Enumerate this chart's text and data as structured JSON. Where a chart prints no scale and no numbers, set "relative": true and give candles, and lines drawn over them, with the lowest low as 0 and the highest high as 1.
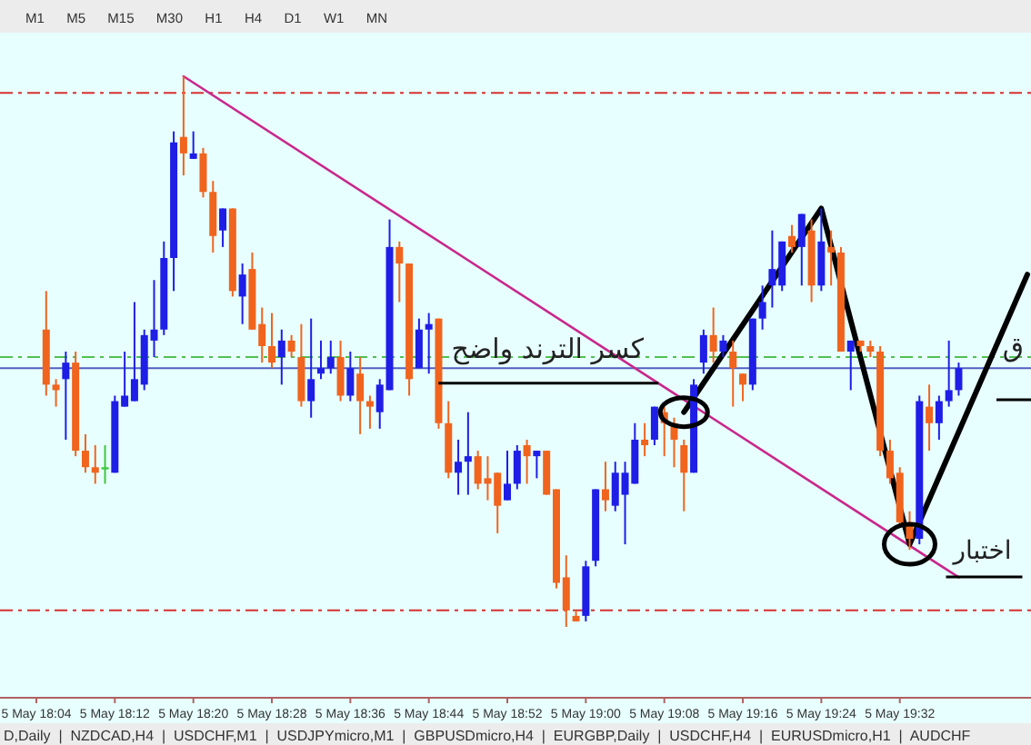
{
  "chart_data": {
    "type": "candlestick",
    "relative": true,
    "categories": [
      "5 May 18:04",
      null,
      null,
      null,
      null,
      null,
      null,
      null,
      "5 May 18:12",
      null,
      null,
      null,
      null,
      null,
      null,
      null,
      "5 May 18:20",
      null,
      null,
      null,
      null,
      null,
      null,
      null,
      "5 May 18:28",
      null,
      null,
      null,
      null,
      null,
      null,
      null,
      "5 May 18:36",
      null,
      null,
      null,
      null,
      null,
      null,
      null,
      "5 May 18:44",
      null,
      null,
      null,
      null,
      null,
      null,
      null,
      "5 May 18:52",
      null,
      null,
      null,
      null,
      null,
      null,
      null,
      "5 May 19:00",
      null,
      null,
      null,
      null,
      null,
      null,
      null,
      "5 May 19:08",
      null,
      null,
      null,
      null,
      null,
      null,
      null,
      "5 May 19:16",
      null,
      null,
      null,
      null,
      null,
      null,
      null,
      "5 May 19:24",
      null,
      null,
      null,
      null,
      null,
      null,
      null,
      "5 May 19:32",
      null,
      null,
      null,
      null,
      null,
      null,
      null,
      null,
      null,
      null,
      null,
      null,
      null
    ],
    "ohlc": [
      null,
      [
        0.54,
        0.61,
        0.42,
        0.44
      ],
      [
        0.44,
        0.45,
        0.4,
        0.43
      ],
      [
        0.45,
        0.5,
        0.34,
        0.48
      ],
      [
        0.48,
        0.5,
        0.31,
        0.32
      ],
      [
        0.32,
        0.35,
        0.28,
        0.29
      ],
      [
        0.29,
        0.33,
        0.26,
        0.28
      ],
      [
        0.29,
        0.33,
        0.26,
        0.29
      ],
      [
        0.28,
        0.42,
        0.28,
        0.41
      ],
      [
        0.4,
        0.5,
        0.4,
        0.42
      ],
      [
        0.41,
        0.59,
        0.41,
        0.45
      ],
      [
        0.44,
        0.54,
        0.43,
        0.53
      ],
      [
        0.52,
        0.63,
        0.49,
        0.54
      ],
      [
        0.54,
        0.7,
        0.53,
        0.67
      ],
      [
        0.67,
        0.9,
        0.61,
        0.88
      ],
      [
        0.89,
        1.0,
        0.82,
        0.86
      ],
      [
        0.85,
        0.9,
        0.85,
        0.86
      ],
      [
        0.86,
        0.87,
        0.78,
        0.79
      ],
      [
        0.79,
        0.81,
        0.68,
        0.71
      ],
      [
        0.72,
        0.76,
        0.69,
        0.76
      ],
      [
        0.76,
        0.76,
        0.6,
        0.61
      ],
      [
        0.6,
        0.66,
        0.55,
        0.64
      ],
      [
        0.65,
        0.68,
        0.54,
        0.54
      ],
      [
        0.55,
        0.58,
        0.48,
        0.51
      ],
      [
        0.51,
        0.57,
        0.47,
        0.48
      ],
      [
        0.49,
        0.54,
        0.44,
        0.52
      ],
      [
        0.52,
        0.53,
        0.49,
        0.5
      ],
      [
        0.49,
        0.55,
        0.4,
        0.41
      ],
      [
        0.41,
        0.56,
        0.38,
        0.45
      ],
      [
        0.46,
        0.52,
        0.45,
        0.47
      ],
      [
        0.47,
        0.52,
        0.46,
        0.49
      ],
      [
        0.49,
        0.52,
        0.41,
        0.42
      ],
      [
        0.42,
        0.5,
        0.41,
        0.47
      ],
      [
        0.46,
        0.49,
        0.35,
        0.41
      ],
      [
        0.41,
        0.42,
        0.36,
        0.4
      ],
      [
        0.39,
        0.45,
        0.36,
        0.44
      ],
      [
        0.43,
        0.74,
        0.43,
        0.69
      ],
      [
        0.69,
        0.7,
        0.59,
        0.66
      ],
      [
        0.66,
        0.66,
        0.42,
        0.45
      ],
      [
        0.47,
        0.56,
        0.47,
        0.54
      ],
      [
        0.54,
        0.57,
        0.46,
        0.55
      ],
      [
        0.56,
        0.56,
        0.36,
        0.37
      ],
      [
        0.37,
        0.41,
        0.27,
        0.28
      ],
      [
        0.28,
        0.34,
        0.24,
        0.3
      ],
      [
        0.3,
        0.39,
        0.24,
        0.31
      ],
      [
        0.31,
        0.32,
        0.25,
        0.26
      ],
      [
        0.27,
        0.31,
        0.23,
        0.26
      ],
      [
        0.28,
        0.28,
        0.17,
        0.22
      ],
      [
        0.23,
        0.32,
        0.23,
        0.26
      ],
      [
        0.26,
        0.33,
        0.25,
        0.32
      ],
      [
        0.33,
        0.34,
        0.26,
        0.31
      ],
      [
        0.31,
        0.32,
        0.27,
        0.32
      ],
      [
        0.32,
        0.32,
        0.24,
        0.24
      ],
      [
        0.25,
        0.25,
        0.07,
        0.08
      ],
      [
        0.09,
        0.13,
        0.0,
        0.03
      ],
      [
        0.02,
        0.03,
        0.01,
        0.01
      ],
      [
        0.02,
        0.12,
        0.01,
        0.11
      ],
      [
        0.12,
        0.25,
        0.11,
        0.25
      ],
      [
        0.25,
        0.3,
        0.21,
        0.23
      ],
      [
        0.22,
        0.3,
        0.21,
        0.28
      ],
      [
        0.24,
        0.3,
        0.15,
        0.28
      ],
      [
        0.26,
        0.37,
        0.26,
        0.34
      ],
      [
        0.34,
        0.37,
        0.31,
        0.33
      ],
      [
        0.34,
        0.4,
        0.33,
        0.4
      ],
      [
        0.39,
        0.4,
        0.31,
        0.37
      ],
      [
        0.37,
        0.38,
        0.29,
        0.34
      ],
      [
        0.33,
        0.34,
        0.21,
        0.28
      ],
      [
        0.28,
        0.45,
        0.28,
        0.44
      ],
      [
        0.48,
        0.54,
        0.46,
        0.53
      ],
      [
        0.53,
        0.58,
        0.48,
        0.5
      ],
      [
        0.5,
        0.53,
        0.49,
        0.52
      ],
      [
        0.5,
        0.52,
        0.4,
        0.47
      ],
      [
        0.46,
        0.46,
        0.41,
        0.44
      ],
      [
        0.44,
        0.56,
        0.43,
        0.56
      ],
      [
        0.56,
        0.62,
        0.54,
        0.59
      ],
      [
        0.62,
        0.72,
        0.58,
        0.65
      ],
      [
        0.62,
        0.7,
        0.61,
        0.7
      ],
      [
        0.71,
        0.73,
        0.68,
        0.69
      ],
      [
        0.69,
        0.75,
        0.62,
        0.75
      ],
      [
        0.72,
        0.74,
        0.59,
        0.62
      ],
      [
        0.62,
        0.76,
        0.61,
        0.7
      ],
      [
        0.69,
        0.72,
        0.62,
        0.68
      ],
      [
        0.68,
        0.69,
        0.5,
        0.5
      ],
      [
        0.5,
        0.52,
        0.43,
        0.52
      ],
      [
        0.52,
        0.52,
        0.5,
        0.51
      ],
      [
        0.51,
        0.52,
        0.49,
        0.5
      ],
      [
        0.5,
        0.51,
        0.31,
        0.32
      ],
      [
        0.32,
        0.34,
        0.26,
        0.27
      ],
      [
        0.28,
        0.29,
        0.18,
        0.19
      ],
      [
        0.19,
        0.21,
        0.14,
        0.16
      ],
      [
        0.16,
        0.42,
        0.15,
        0.41
      ],
      [
        0.4,
        0.44,
        0.32,
        0.37
      ],
      [
        0.37,
        0.42,
        0.34,
        0.41
      ],
      [
        0.41,
        0.52,
        0.4,
        0.43
      ],
      [
        0.43,
        0.48,
        0.42,
        0.47
      ],
      null,
      null,
      null,
      null,
      null,
      null,
      null
    ],
    "colors": [
      null,
      "#f0641e",
      "#f0641e",
      "#1e1ee6",
      "#f0641e",
      "#f0641e",
      "#f0641e",
      "#3cc83c",
      "#1e1ee6",
      "#1e1ee6",
      "#1e1ee6",
      "#1e1ee6",
      "#1e1ee6",
      "#1e1ee6",
      "#1e1ee6",
      "#f0641e",
      "#1e1ee6",
      "#f0641e",
      "#f0641e",
      "#1e1ee6",
      "#f0641e",
      "#1e1ee6",
      "#f0641e",
      "#f0641e",
      "#f0641e",
      "#1e1ee6",
      "#f0641e",
      "#f0641e",
      "#1e1ee6",
      "#1e1ee6",
      "#1e1ee6",
      "#f0641e",
      "#1e1ee6",
      "#f0641e",
      "#f0641e",
      "#1e1ee6",
      "#1e1ee6",
      "#f0641e",
      "#f0641e",
      "#1e1ee6",
      "#1e1ee6",
      "#f0641e",
      "#f0641e",
      "#1e1ee6",
      "#1e1ee6",
      "#f0641e",
      "#f0641e",
      "#f0641e",
      "#1e1ee6",
      "#1e1ee6",
      "#f0641e",
      "#1e1ee6",
      "#f0641e",
      "#f0641e",
      "#f0641e",
      "#f0641e",
      "#1e1ee6",
      "#1e1ee6",
      "#f0641e",
      "#1e1ee6",
      "#1e1ee6",
      "#1e1ee6",
      "#f0641e",
      "#1e1ee6",
      "#f0641e",
      "#f0641e",
      "#f0641e",
      "#1e1ee6",
      "#1e1ee6",
      "#f0641e",
      "#1e1ee6",
      "#f0641e",
      "#f0641e",
      "#1e1ee6",
      "#1e1ee6",
      "#1e1ee6",
      "#1e1ee6",
      "#f0641e",
      "#1e1ee6",
      "#f0641e",
      "#1e1ee6",
      "#f0641e",
      "#f0641e",
      "#1e1ee6",
      "#f0641e",
      "#f0641e",
      "#f0641e",
      "#f0641e",
      "#f0641e",
      "#f0641e",
      "#1e1ee6",
      "#f0641e",
      "#1e1ee6",
      "#1e1ee6",
      "#1e1ee6",
      null,
      null,
      null,
      null,
      null,
      null,
      null
    ],
    "series": [
      {
        "type": "line",
        "color": "#c8288c",
        "values": [
          null,
          null,
          null,
          null,
          null,
          null,
          null,
          null,
          null,
          null,
          null,
          null,
          null,
          null,
          null,
          1.0,
          null,
          null,
          null,
          null,
          null,
          null,
          null,
          null,
          null,
          null,
          null,
          null,
          null,
          null,
          null,
          null,
          null,
          null,
          null,
          null,
          null,
          null,
          null,
          null,
          null,
          null,
          null,
          null,
          null,
          null,
          null,
          null,
          null,
          null,
          null,
          null,
          null,
          null,
          null,
          null,
          null,
          null,
          null,
          null,
          null,
          null,
          null,
          null,
          null,
          null,
          null,
          null,
          null,
          null,
          null,
          null,
          null,
          null,
          null,
          null,
          null,
          null,
          null,
          null,
          null,
          null,
          null,
          null,
          null,
          null,
          null,
          null,
          null,
          null,
          null,
          null,
          null,
          null,
          0.09,
          null,
          null,
          null,
          null,
          null,
          null,
          null
        ]
      },
      {
        "type": "line",
        "color": "#000000",
        "values": [
          null,
          null,
          null,
          null,
          null,
          null,
          null,
          null,
          null,
          null,
          null,
          null,
          null,
          null,
          null,
          null,
          null,
          null,
          null,
          null,
          null,
          null,
          null,
          null,
          null,
          null,
          null,
          null,
          null,
          null,
          null,
          null,
          null,
          null,
          null,
          null,
          null,
          null,
          null,
          null,
          null,
          null,
          null,
          null,
          null,
          null,
          null,
          null,
          null,
          null,
          null,
          null,
          null,
          null,
          null,
          null,
          null,
          null,
          null,
          null,
          null,
          null,
          null,
          null,
          null,
          null,
          0.39,
          null,
          null,
          null,
          null,
          null,
          null,
          null,
          null,
          null,
          null,
          null,
          null,
          null,
          0.76,
          null,
          null,
          null,
          null,
          null,
          null,
          null,
          null,
          0.15,
          null,
          null,
          null,
          null,
          null,
          null,
          null,
          null,
          null,
          null,
          null,
          0.64
        ]
      }
    ],
    "ref_lines": [
      {
        "axis": "y",
        "value": 0.97,
        "color": "#d83030",
        "line_style": "dashed"
      },
      {
        "axis": "y",
        "value": 0.03,
        "color": "#d83030",
        "line_style": "dashed"
      },
      {
        "axis": "y",
        "value": 0.49,
        "color": "#50c050",
        "line_style": "dashed"
      },
      {
        "axis": "y",
        "value": 0.47,
        "color": "#5060c0",
        "line_style": "solid"
      }
    ],
    "annotations": [
      "كسر الترند واضح",
      "اختبار",
      "ق",
      "M1  M5  M15  M30  H1  H4  D1  W1  MN",
      "D,Daily  |  NZDCAD,H4  |  USDCHF,M1  |  USDJPYmicro,M1  |  GBPUSDmicro,H4  |  EURGBP,Daily  |  USDCHF,H4  |  EURUSDmicro,H1  |  AUDCHF"
    ]
  }
}
